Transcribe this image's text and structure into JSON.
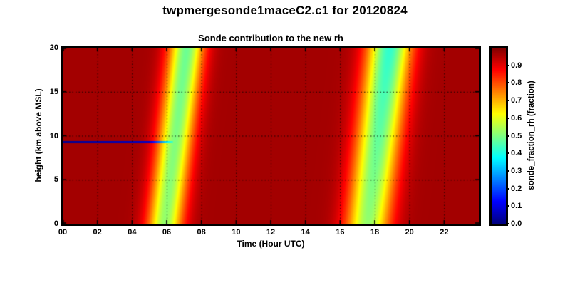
{
  "chart_data": {
    "type": "heatmap",
    "figure_title": "twpmergesonde1maceC2.c1 for 20120824",
    "axes_title": "Sonde contribution to the new rh",
    "xlabel": "Time (Hour UTC)",
    "ylabel": "height (km above MSL)",
    "colorbar_label": "sonde_fraction_rh (fraction)",
    "colormap": "jet",
    "xlim": [
      0,
      24
    ],
    "ylim": [
      0,
      20
    ],
    "clim": [
      0.0,
      1.0
    ],
    "x_tick_values": [
      0,
      2,
      4,
      6,
      8,
      10,
      12,
      14,
      16,
      18,
      20,
      22
    ],
    "x_tick_labels": [
      "00",
      "02",
      "04",
      "06",
      "08",
      "10",
      "12",
      "14",
      "16",
      "18",
      "20",
      "22"
    ],
    "y_tick_values": [
      0,
      5,
      10,
      15,
      20
    ],
    "y_tick_labels": [
      "0",
      "5",
      "10",
      "15",
      "20"
    ],
    "colorbar_tick_values": [
      0.0,
      0.1,
      0.2,
      0.3,
      0.4,
      0.5,
      0.6,
      0.7,
      0.8,
      0.9
    ],
    "colorbar_tick_labels": [
      "0.0",
      "0.1",
      "0.2",
      "0.3",
      "0.4",
      "0.5",
      "0.6",
      "0.7",
      "0.8",
      "0.9"
    ],
    "grid": {
      "x_step_hours": 2,
      "y_step_km": 5,
      "style": "dotted",
      "color": "#000000"
    },
    "background_value": 0.965,
    "features": {
      "sonde_stripes": [
        {
          "name": "sonde-ascent-early",
          "time_at_0km": 5.9,
          "time_at_20km": 7.15,
          "sigma_hours": 0.72,
          "min_value_at_0km": 0.52,
          "min_value_at_20km": 0.48
        },
        {
          "name": "sonde-ascent-late",
          "time_at_0km": 17.6,
          "time_at_20km": 18.85,
          "sigma_hours": 0.9,
          "min_value_at_0km": 0.52,
          "min_value_at_20km": 0.42
        }
      ],
      "blue_line": {
        "height_km": 9.3,
        "thickness_km": 0.22,
        "t_start": 0.0,
        "t_mid": 5.0,
        "t_end": 6.35,
        "value_start": 0.02,
        "value_mid": 0.07,
        "value_end": 0.45
      }
    }
  }
}
